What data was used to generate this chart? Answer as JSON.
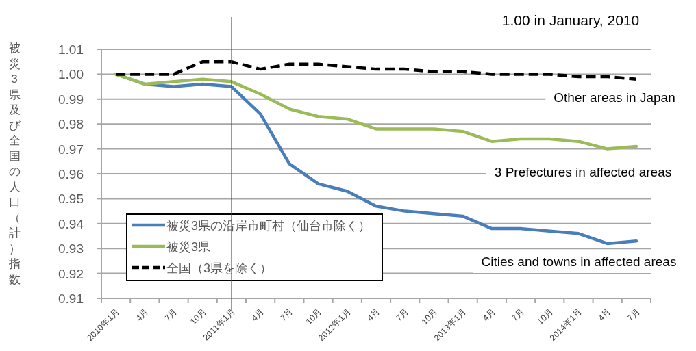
{
  "chart_data": {
    "type": "line",
    "ylabel": "被災3県及び全国の人口（計）指数",
    "categories": [
      "2010年1月",
      "4月",
      "7月",
      "10月",
      "2011年1月",
      "4月",
      "7月",
      "10月",
      "2012年1月",
      "4月",
      "7月",
      "10月",
      "2013年1月",
      "4月",
      "7月",
      "10月",
      "2014年1月",
      "4月",
      "7月"
    ],
    "series": [
      {
        "name": "被災3県の沿岸市町村（仙台市除く）",
        "color": "#4a7ebb",
        "line_style": "solid",
        "values": [
          1.0,
          0.996,
          0.995,
          0.996,
          0.995,
          0.984,
          0.964,
          0.956,
          0.953,
          0.947,
          0.945,
          0.944,
          0.943,
          0.938,
          0.938,
          0.937,
          0.936,
          0.932,
          0.933
        ]
      },
      {
        "name": "被災3県",
        "color": "#9bbb59",
        "line_style": "solid",
        "values": [
          1.0,
          0.996,
          0.997,
          0.998,
          0.997,
          0.992,
          0.986,
          0.983,
          0.982,
          0.978,
          0.978,
          0.978,
          0.977,
          0.973,
          0.974,
          0.974,
          0.973,
          0.97,
          0.971
        ]
      },
      {
        "name": "全国（3県を除く）",
        "color": "#000000",
        "line_style": "dashed",
        "values": [
          1.0,
          1.0,
          1.0,
          1.005,
          1.005,
          1.002,
          1.004,
          1.004,
          1.003,
          1.002,
          1.002,
          1.001,
          1.001,
          1.0,
          1.0,
          1.0,
          0.999,
          0.999,
          0.998
        ]
      }
    ],
    "ylim": [
      0.91,
      1.01
    ],
    "yticks": [
      0.91,
      0.92,
      0.93,
      0.94,
      0.95,
      0.96,
      0.97,
      0.98,
      0.99,
      {
        "value": 1.0,
        "label": "1.00"
      },
      1.01
    ],
    "grid": "y",
    "legend": "bottom left",
    "ref_lines": [
      {
        "axis": "x",
        "value": "2011年1月",
        "color": "#ff0000"
      }
    ],
    "annotations": [
      "1.00 in January, 2010",
      "Other areas in Japan",
      "3 Prefectures in affected areas",
      "Cities and towns in affected areas"
    ]
  }
}
